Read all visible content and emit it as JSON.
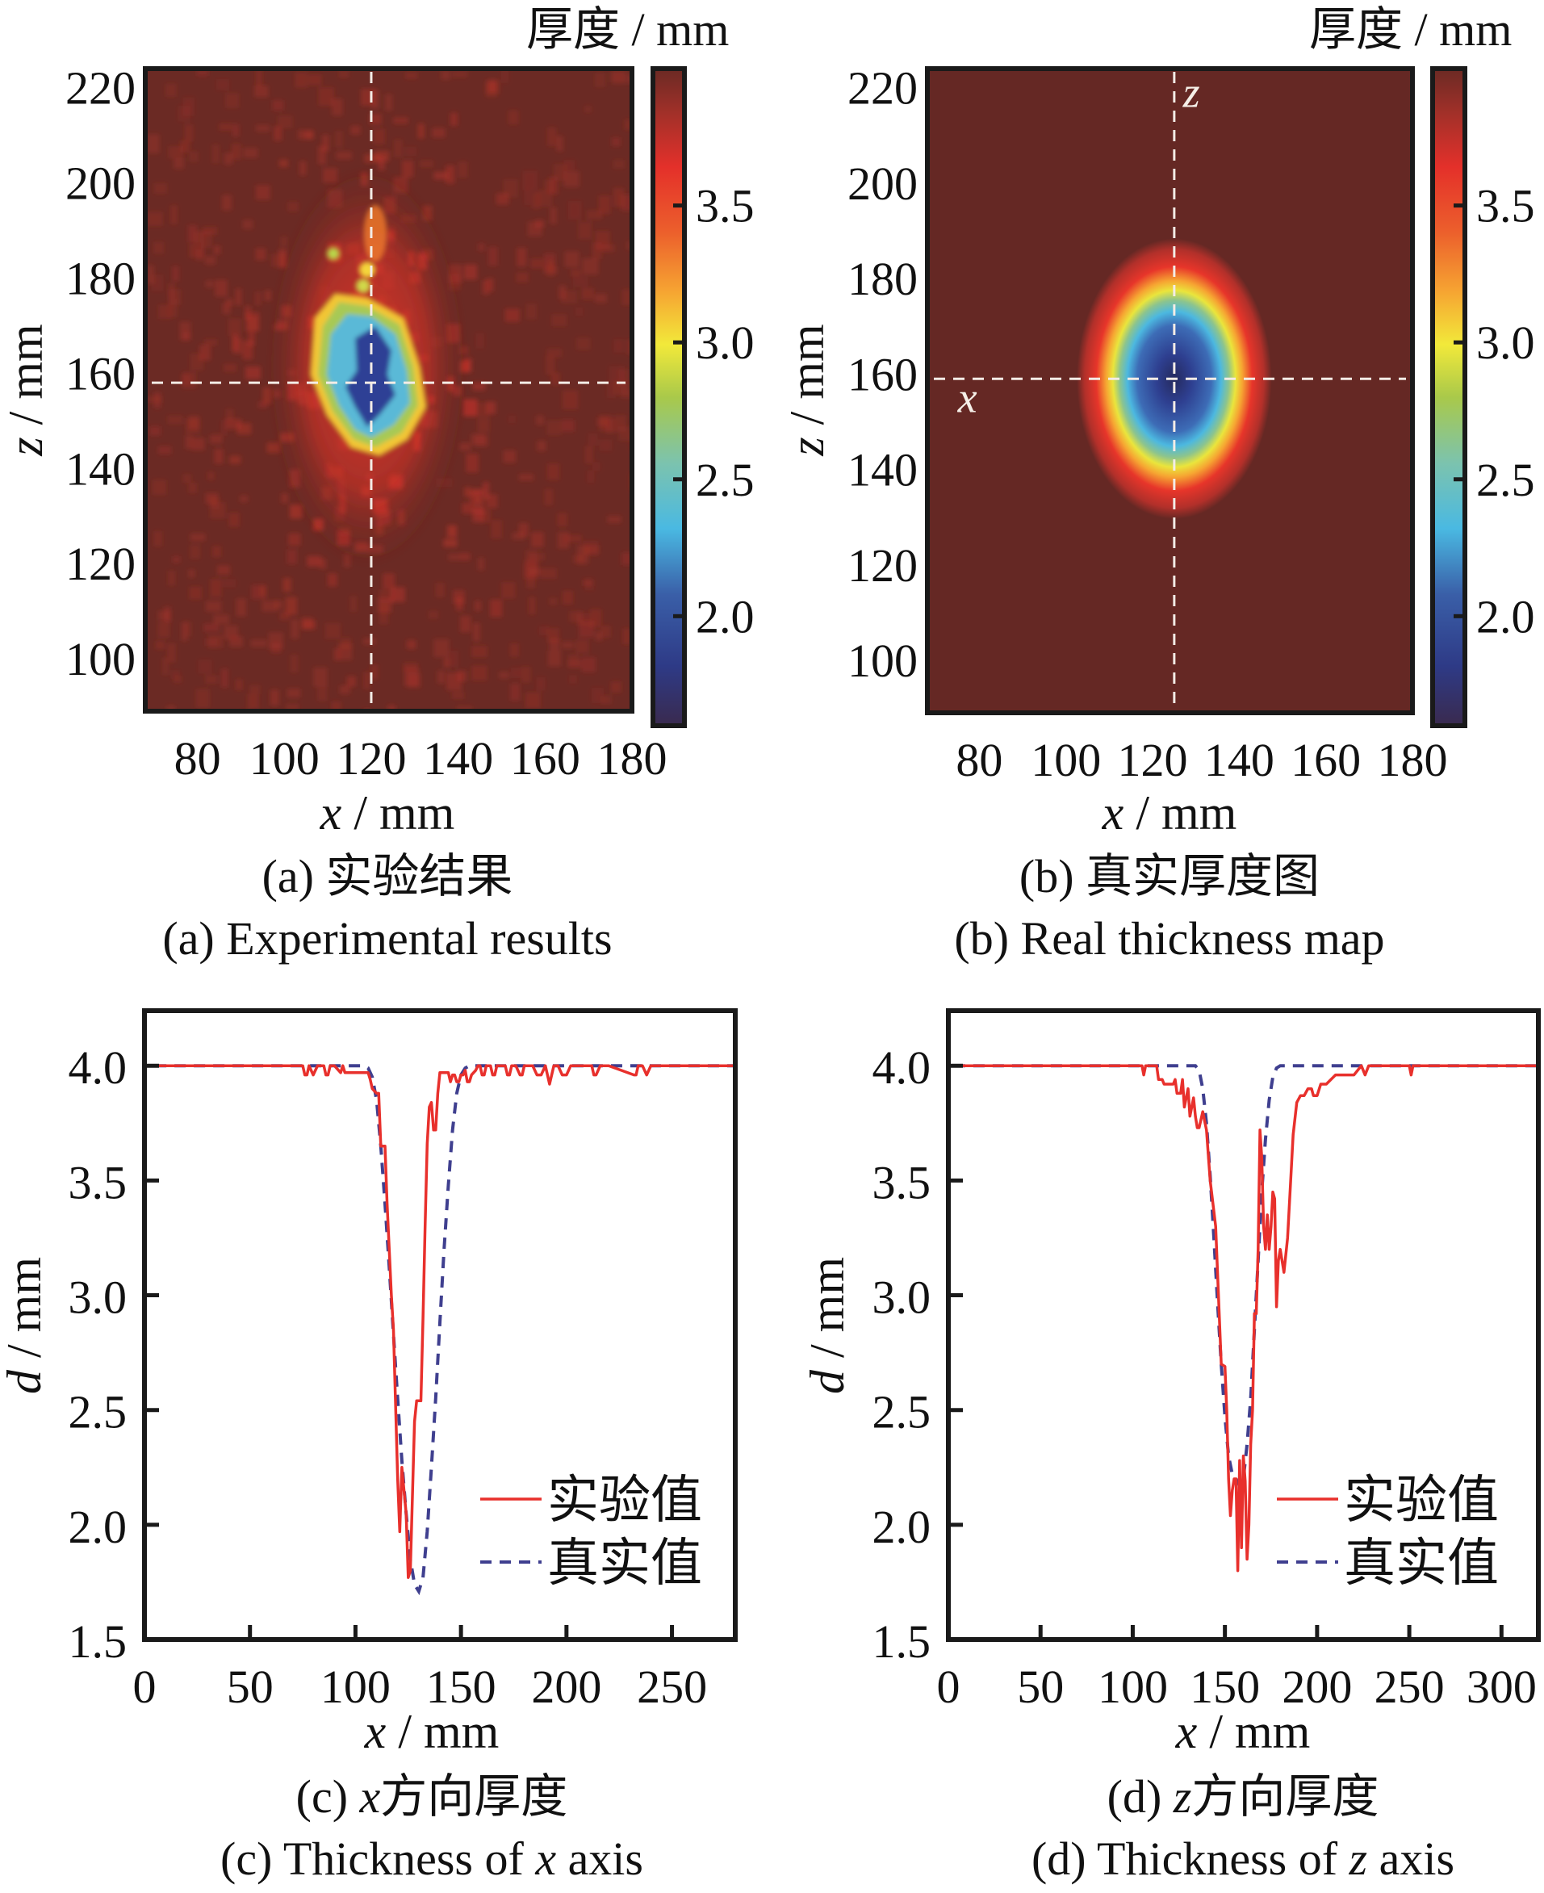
{
  "figure": {
    "panels": [
      "a",
      "b",
      "c",
      "d"
    ]
  },
  "chart_data": [
    {
      "id": "a",
      "type": "heatmap",
      "title_cn": "(a) 实验结果",
      "title_en": "(a) Experimental results",
      "xlabel_var": "x",
      "xlabel_unit": " / mm",
      "ylabel_var": "z",
      "ylabel_unit": " / mm",
      "xlim": [
        68,
        180
      ],
      "ylim": [
        89,
        224
      ],
      "xticks": [
        80,
        100,
        120,
        140,
        160,
        180
      ],
      "yticks": [
        100,
        120,
        140,
        160,
        180,
        200,
        220
      ],
      "colorbar": {
        "label": "厚度 / mm",
        "range": [
          1.6,
          4.0
        ],
        "ticks": [
          "2.0",
          "2.5",
          "3.0",
          "3.5"
        ],
        "tick_values": [
          2.0,
          2.5,
          3.0,
          3.5
        ],
        "colormap": [
          "#3a2a4e",
          "#2e3f8f",
          "#3f6db5",
          "#4cb8e0",
          "#7cc6b0",
          "#a9c94a",
          "#f2e93a",
          "#f7a530",
          "#ee6a2d",
          "#e42e29",
          "#a3302a",
          "#6c2a24"
        ]
      },
      "background_value": 3.95,
      "defect": {
        "center_x": 120,
        "center_z": 158,
        "min_value": 1.8,
        "pattern": "noisy"
      },
      "crosshair": {
        "x": 120,
        "z": 158
      }
    },
    {
      "id": "b",
      "type": "heatmap",
      "title_cn": "(b) 真实厚度图",
      "title_en": "(b)  Real thickness map",
      "xlabel_var": "x",
      "xlabel_unit": " / mm",
      "ylabel_var": "z",
      "ylabel_unit": " / mm",
      "xlim": [
        68,
        180
      ],
      "ylim": [
        89,
        224
      ],
      "xticks": [
        80,
        100,
        120,
        140,
        160,
        180
      ],
      "yticks": [
        100,
        120,
        140,
        160,
        180,
        200,
        220
      ],
      "colorbar": {
        "label": "厚度 / mm",
        "range": [
          1.6,
          4.0
        ],
        "ticks": [
          "2.0",
          "2.5",
          "3.0",
          "3.5"
        ],
        "tick_values": [
          2.0,
          2.5,
          3.0,
          3.5
        ]
      },
      "background_value": 4.0,
      "defect": {
        "center_x": 125,
        "center_z": 159,
        "min_value": 1.7,
        "radius_x": 18,
        "radius_z": 28,
        "pattern": "elliptical"
      },
      "crosshair": {
        "x": 125,
        "z": 159
      },
      "annotations": [
        {
          "text": "z",
          "x": 127,
          "z": 216
        },
        {
          "text": "x",
          "x": 75,
          "z": 152
        }
      ]
    },
    {
      "id": "c",
      "type": "line",
      "title_cn_prefix": "(c) ",
      "title_cn_var": "x",
      "title_cn_suffix": "方向厚度",
      "title_en_prefix": "(c) Thickness of ",
      "title_en_var": "x",
      "title_en_suffix": " axis",
      "xlabel_var": "x",
      "xlabel_unit": " / mm",
      "ylabel_var": "d",
      "ylabel_unit": " / mm",
      "xlim": [
        0,
        280
      ],
      "ylim": [
        1.5,
        4.24
      ],
      "xticks": [
        0,
        50,
        100,
        150,
        200,
        250
      ],
      "yticks": [
        "1.5",
        "2.0",
        "2.5",
        "3.0",
        "3.5",
        "4.0"
      ],
      "ytick_values": [
        1.5,
        2.0,
        2.5,
        3.0,
        3.5,
        4.0
      ],
      "legend": {
        "position": "lower-right",
        "entries": [
          "实验值",
          "真实值"
        ]
      },
      "series": [
        {
          "name": "实验值",
          "style": "solid",
          "color": "#e8302c",
          "x": [
            5,
            75,
            76,
            77,
            78,
            80,
            82,
            83,
            84,
            85,
            86,
            87,
            88,
            90,
            93,
            94,
            95,
            96,
            98,
            100,
            104,
            106,
            107,
            108,
            110,
            111,
            112,
            113,
            114,
            115,
            117,
            118,
            120,
            121,
            122,
            124,
            125,
            126,
            128,
            129,
            131,
            132,
            133,
            134,
            135,
            136,
            137,
            138,
            139,
            140,
            141,
            142,
            143,
            144,
            145,
            146,
            147,
            148,
            149,
            150,
            151,
            152,
            153,
            154,
            155,
            157,
            158,
            159,
            160,
            161,
            162,
            164,
            165,
            166,
            167,
            169,
            171,
            172,
            173,
            174,
            176,
            178,
            179,
            180,
            182,
            184,
            186,
            188,
            190,
            192,
            194,
            196,
            198,
            200,
            202,
            205,
            210,
            212,
            213,
            214,
            216,
            218,
            220,
            232,
            233,
            234,
            236,
            238,
            240,
            246,
            248,
            280
          ],
          "y": [
            4.0,
            4.0,
            3.96,
            3.96,
            4.0,
            3.96,
            4.0,
            4.0,
            4.0,
            4.0,
            3.96,
            3.96,
            4.0,
            4.0,
            3.97,
            4.0,
            3.97,
            3.97,
            3.97,
            3.97,
            3.97,
            3.97,
            3.94,
            3.9,
            3.88,
            3.88,
            3.65,
            3.65,
            3.65,
            3.4,
            3.0,
            2.85,
            2.2,
            1.97,
            2.25,
            2.05,
            1.77,
            1.8,
            2.45,
            2.54,
            2.54,
            2.9,
            3.3,
            3.66,
            3.82,
            3.84,
            3.72,
            3.72,
            3.88,
            3.97,
            3.97,
            3.97,
            3.97,
            3.97,
            3.93,
            3.96,
            3.96,
            3.93,
            3.93,
            3.96,
            3.96,
            3.98,
            3.93,
            3.93,
            3.96,
            3.98,
            4.0,
            4.0,
            3.96,
            3.96,
            4.0,
            4.0,
            3.96,
            3.96,
            4.0,
            4.0,
            4.0,
            3.96,
            3.96,
            4.0,
            4.0,
            3.96,
            3.96,
            4.0,
            4.0,
            4.0,
            3.96,
            3.96,
            4.0,
            3.92,
            4.0,
            4.0,
            3.96,
            3.96,
            4.0,
            4.0,
            4.0,
            4.0,
            3.96,
            3.96,
            4.0,
            4.0,
            4.0,
            3.96,
            3.96,
            4.0,
            4.0,
            3.96,
            4.0,
            4.0,
            4.0,
            4.0
          ]
        },
        {
          "name": "真实值",
          "style": "dashed",
          "color": "#3f3f8f",
          "x": [
            5,
            104,
            106,
            108,
            110,
            112,
            114,
            116,
            118,
            120,
            122,
            124,
            126,
            128,
            130,
            132,
            134,
            136,
            138,
            140,
            142,
            144,
            146,
            148,
            150,
            152,
            154,
            280
          ],
          "y": [
            4.0,
            4.0,
            3.99,
            3.95,
            3.85,
            3.65,
            3.4,
            3.12,
            2.83,
            2.55,
            2.28,
            2.05,
            1.85,
            1.74,
            1.71,
            1.77,
            1.97,
            2.25,
            2.55,
            2.88,
            3.2,
            3.48,
            3.72,
            3.88,
            3.96,
            3.99,
            4.0,
            4.0
          ]
        }
      ]
    },
    {
      "id": "d",
      "type": "line",
      "title_cn_prefix": "(d) ",
      "title_cn_var": "z",
      "title_cn_suffix": "方向厚度",
      "title_en_prefix": "(d) Thickness of ",
      "title_en_var": "z",
      "title_en_suffix": " axis",
      "xlabel_var": "x",
      "xlabel_unit": " / mm",
      "ylabel_var": "d",
      "ylabel_unit": " / mm",
      "xlim": [
        0,
        320
      ],
      "ylim": [
        1.5,
        4.24
      ],
      "xticks": [
        0,
        50,
        100,
        150,
        200,
        250,
        300
      ],
      "yticks": [
        "1.5",
        "2.0",
        "2.5",
        "3.0",
        "3.5",
        "4.0"
      ],
      "ytick_values": [
        1.5,
        2.0,
        2.5,
        3.0,
        3.5,
        4.0
      ],
      "legend": {
        "position": "lower-right",
        "entries": [
          "实验值",
          "真实值"
        ]
      },
      "series": [
        {
          "name": "实验值",
          "style": "solid",
          "color": "#e8302c",
          "x": [
            3,
            105,
            106,
            107,
            109,
            113,
            114,
            116,
            117,
            120,
            122,
            123,
            124,
            126,
            127,
            128,
            130,
            131,
            133,
            134,
            135,
            136,
            138,
            140,
            142,
            145,
            147,
            148,
            150,
            151,
            152,
            153,
            154,
            155,
            156,
            157,
            158,
            159,
            160,
            161,
            162,
            163,
            164,
            165,
            166,
            167,
            168,
            169,
            170,
            171,
            172,
            173,
            174,
            175,
            176,
            177,
            178,
            179,
            180,
            182,
            184,
            186,
            187,
            189,
            191,
            193,
            195,
            197,
            198,
            200,
            202,
            205,
            210,
            214,
            216,
            218,
            220,
            222,
            224,
            226,
            228,
            250,
            251,
            252,
            254,
            320
          ],
          "y": [
            4.0,
            4.0,
            3.96,
            4.0,
            4.0,
            4.0,
            3.94,
            3.94,
            3.92,
            3.92,
            3.92,
            3.94,
            3.88,
            3.88,
            3.94,
            3.82,
            3.9,
            3.78,
            3.86,
            3.78,
            3.73,
            3.73,
            3.8,
            3.72,
            3.5,
            3.3,
            2.9,
            2.7,
            2.69,
            2.5,
            2.2,
            2.04,
            2.15,
            2.2,
            2.2,
            1.8,
            2.28,
            1.9,
            2.3,
            2.19,
            1.85,
            2.0,
            2.35,
            2.5,
            2.92,
            2.92,
            3.2,
            3.72,
            3.6,
            3.3,
            3.2,
            3.35,
            3.2,
            3.3,
            3.45,
            3.42,
            2.95,
            3.15,
            3.2,
            3.1,
            3.25,
            3.55,
            3.7,
            3.84,
            3.87,
            3.87,
            3.9,
            3.9,
            3.87,
            3.87,
            3.92,
            3.92,
            3.96,
            3.96,
            3.96,
            3.96,
            3.96,
            3.98,
            4.0,
            3.96,
            4.0,
            4.0,
            3.96,
            4.0,
            4.0,
            4.0
          ]
        },
        {
          "name": "真实值",
          "style": "dashed",
          "color": "#3f3f8f",
          "x": [
            3,
            134,
            136,
            138,
            140,
            142,
            144,
            146,
            148,
            150,
            152,
            154,
            156,
            158,
            160,
            162,
            164,
            166,
            168,
            170,
            172,
            174,
            176,
            178,
            180,
            182,
            320
          ],
          "y": [
            4.0,
            4.0,
            3.98,
            3.9,
            3.75,
            3.52,
            3.25,
            2.97,
            2.7,
            2.47,
            2.3,
            2.22,
            2.2,
            2.17,
            2.2,
            2.35,
            2.55,
            2.85,
            3.15,
            3.45,
            3.68,
            3.85,
            3.95,
            3.99,
            4.0,
            4.0,
            4.0
          ]
        }
      ]
    }
  ],
  "captions": {
    "a_cn": "(a) 实验结果",
    "a_en": "(a) Experimental results",
    "b_cn": "(b) 真实厚度图",
    "b_en": "(b)  Real thickness map"
  },
  "colorbar_label": "厚度 / mm"
}
